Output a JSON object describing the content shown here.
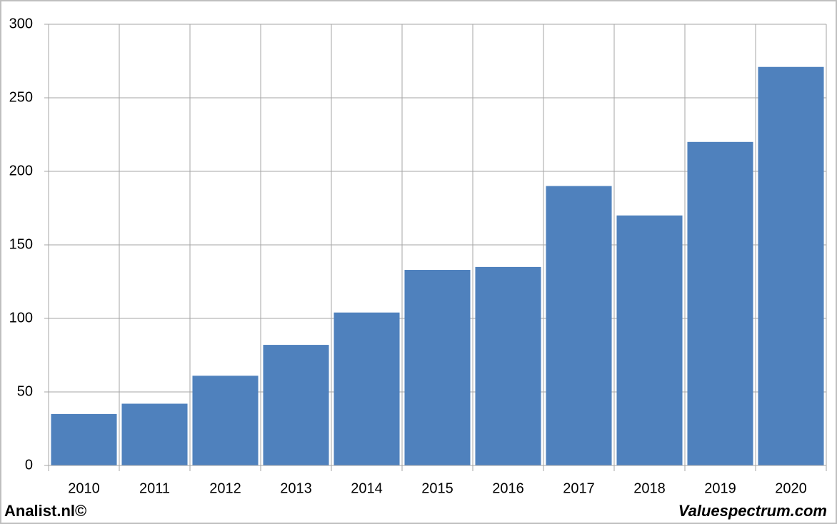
{
  "chart_data": {
    "type": "bar",
    "categories": [
      "2010",
      "2011",
      "2012",
      "2013",
      "2014",
      "2015",
      "2016",
      "2017",
      "2018",
      "2019",
      "2020"
    ],
    "values": [
      35,
      42,
      61,
      82,
      104,
      133,
      135,
      190,
      170,
      220,
      271
    ],
    "color": "#4f81bd",
    "ylim": [
      0,
      300
    ],
    "yticks": [
      0,
      50,
      100,
      150,
      200,
      250,
      300
    ],
    "grid": true,
    "footer_left": "Analist.nl©",
    "footer_right": "Valuespectrum.com"
  }
}
